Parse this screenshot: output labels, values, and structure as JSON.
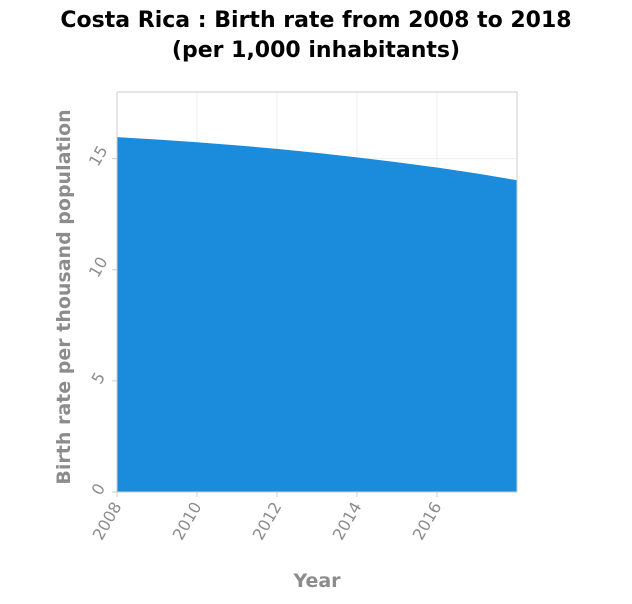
{
  "chart_data": {
    "type": "area",
    "title_lines": [
      "Costa Rica : Birth rate from 2008 to 2018",
      "(per 1,000 inhabitants)"
    ],
    "xlabel": "Year",
    "ylabel": "Birth rate per thousand population",
    "x": [
      2008,
      2009,
      2010,
      2011,
      2012,
      2013,
      2014,
      2015,
      2016,
      2017,
      2018
    ],
    "series": [
      {
        "name": "Birth rate",
        "color": "#1a8cdb",
        "values": [
          15.97,
          15.86,
          15.74,
          15.6,
          15.44,
          15.26,
          15.06,
          14.84,
          14.6,
          14.33,
          14.03
        ]
      }
    ],
    "xlim": [
      2008,
      2018
    ],
    "ylim": [
      0,
      18
    ],
    "xticks": [
      2008,
      2010,
      2012,
      2014,
      2016
    ],
    "yticks": [
      0,
      5,
      10,
      15
    ],
    "grid": true,
    "gridColor": "#eeeeee",
    "axisColor": "#cccccc"
  }
}
